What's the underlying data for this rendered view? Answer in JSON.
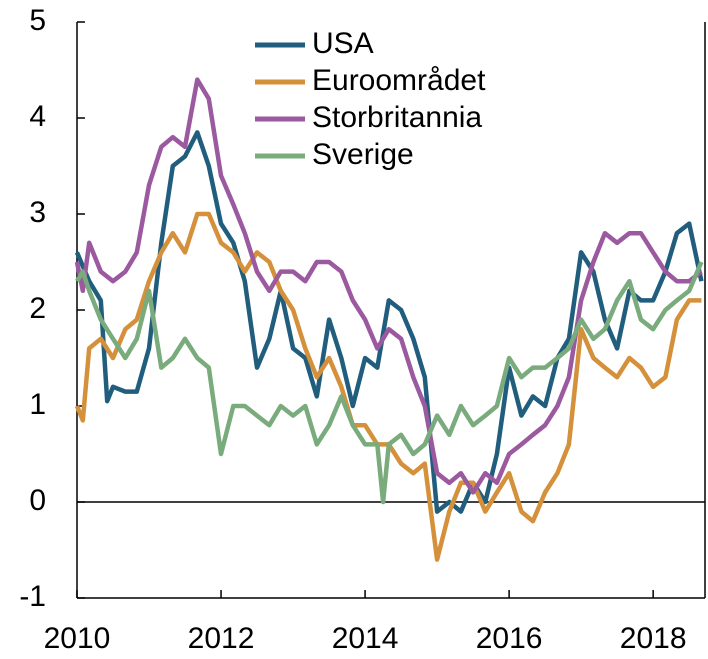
{
  "chart_data": {
    "type": "line",
    "xlim": [
      2010,
      2018.72
    ],
    "xticks": [
      2010,
      2012,
      2014,
      2016,
      2018
    ],
    "ylim": [
      -1,
      5
    ],
    "yticks": [
      -1,
      0,
      1,
      2,
      3,
      4,
      5
    ],
    "legend": "top",
    "series": [
      {
        "name": "USA",
        "color": "#215e7e",
        "x": [
          2010,
          2010.17,
          2010.33,
          2010.42,
          2010.5,
          2010.67,
          2010.83,
          2011,
          2011.17,
          2011.33,
          2011.5,
          2011.67,
          2011.83,
          2012,
          2012.17,
          2012.33,
          2012.5,
          2012.67,
          2012.83,
          2013,
          2013.17,
          2013.33,
          2013.5,
          2013.67,
          2013.83,
          2014,
          2014.17,
          2014.33,
          2014.5,
          2014.67,
          2014.83,
          2015,
          2015.17,
          2015.33,
          2015.5,
          2015.67,
          2015.83,
          2016,
          2016.17,
          2016.33,
          2016.5,
          2016.67,
          2016.83,
          2017,
          2017.17,
          2017.33,
          2017.5,
          2017.67,
          2017.83,
          2018,
          2018.17,
          2018.33,
          2018.5,
          2018.67
        ],
        "values": [
          2.6,
          2.3,
          2.1,
          1.05,
          1.2,
          1.15,
          1.15,
          1.6,
          2.7,
          3.5,
          3.6,
          3.85,
          3.5,
          2.9,
          2.7,
          2.3,
          1.4,
          1.7,
          2.2,
          1.6,
          1.5,
          1.1,
          1.9,
          1.5,
          1.0,
          1.5,
          1.4,
          2.1,
          2.0,
          1.7,
          1.3,
          -0.1,
          0.0,
          -0.1,
          0.2,
          0.0,
          0.5,
          1.4,
          0.9,
          1.1,
          1.0,
          1.5,
          1.7,
          2.6,
          2.4,
          1.9,
          1.6,
          2.2,
          2.1,
          2.1,
          2.4,
          2.8,
          2.9,
          2.3
        ]
      },
      {
        "name": "Euroområdet",
        "color": "#d4903a",
        "x": [
          2010,
          2010.08,
          2010.17,
          2010.33,
          2010.5,
          2010.67,
          2010.83,
          2011,
          2011.17,
          2011.33,
          2011.5,
          2011.67,
          2011.83,
          2012,
          2012.17,
          2012.33,
          2012.5,
          2012.67,
          2012.83,
          2013,
          2013.17,
          2013.33,
          2013.5,
          2013.67,
          2013.83,
          2014,
          2014.17,
          2014.33,
          2014.5,
          2014.67,
          2014.83,
          2015,
          2015.17,
          2015.33,
          2015.5,
          2015.67,
          2015.83,
          2016,
          2016.17,
          2016.33,
          2016.5,
          2016.67,
          2016.83,
          2017,
          2017.17,
          2017.33,
          2017.5,
          2017.67,
          2017.83,
          2018,
          2018.17,
          2018.33,
          2018.5,
          2018.67
        ],
        "values": [
          1.0,
          0.85,
          1.6,
          1.7,
          1.5,
          1.8,
          1.9,
          2.3,
          2.6,
          2.8,
          2.6,
          3.0,
          3.0,
          2.7,
          2.6,
          2.4,
          2.6,
          2.5,
          2.2,
          2.0,
          1.6,
          1.3,
          1.5,
          1.2,
          0.8,
          0.8,
          0.6,
          0.6,
          0.4,
          0.3,
          0.4,
          -0.6,
          -0.1,
          0.2,
          0.2,
          -0.1,
          0.1,
          0.3,
          -0.1,
          -0.2,
          0.1,
          0.3,
          0.6,
          1.8,
          1.5,
          1.4,
          1.3,
          1.5,
          1.4,
          1.2,
          1.3,
          1.9,
          2.1,
          2.1
        ]
      },
      {
        "name": "Storbritannia",
        "color": "#9b59a0",
        "x": [
          2010,
          2010.08,
          2010.17,
          2010.33,
          2010.5,
          2010.67,
          2010.83,
          2011,
          2011.17,
          2011.33,
          2011.5,
          2011.67,
          2011.83,
          2012,
          2012.17,
          2012.33,
          2012.5,
          2012.67,
          2012.83,
          2013,
          2013.17,
          2013.33,
          2013.5,
          2013.67,
          2013.83,
          2014,
          2014.17,
          2014.33,
          2014.5,
          2014.67,
          2014.83,
          2015,
          2015.17,
          2015.33,
          2015.5,
          2015.67,
          2015.83,
          2016,
          2016.17,
          2016.33,
          2016.5,
          2016.67,
          2016.83,
          2017,
          2017.17,
          2017.33,
          2017.5,
          2017.67,
          2017.83,
          2018,
          2018.17,
          2018.33,
          2018.5,
          2018.67
        ],
        "values": [
          2.5,
          2.2,
          2.7,
          2.4,
          2.3,
          2.4,
          2.6,
          3.3,
          3.7,
          3.8,
          3.7,
          4.4,
          4.2,
          3.4,
          3.1,
          2.8,
          2.4,
          2.2,
          2.4,
          2.4,
          2.3,
          2.5,
          2.5,
          2.4,
          2.1,
          1.9,
          1.6,
          1.8,
          1.7,
          1.3,
          1.0,
          0.3,
          0.2,
          0.3,
          0.1,
          0.3,
          0.2,
          0.5,
          0.6,
          0.7,
          0.8,
          1.0,
          1.3,
          2.1,
          2.5,
          2.8,
          2.7,
          2.8,
          2.8,
          2.6,
          2.4,
          2.3,
          2.3,
          2.4
        ]
      },
      {
        "name": "Sverige",
        "color": "#7aab7c",
        "x": [
          2010,
          2010.08,
          2010.17,
          2010.33,
          2010.5,
          2010.67,
          2010.83,
          2011,
          2011.17,
          2011.33,
          2011.5,
          2011.67,
          2011.83,
          2012,
          2012.17,
          2012.33,
          2012.5,
          2012.67,
          2012.83,
          2013,
          2013.17,
          2013.33,
          2013.5,
          2013.67,
          2013.83,
          2014,
          2014.17,
          2014.25,
          2014.33,
          2014.5,
          2014.67,
          2014.83,
          2015,
          2015.17,
          2015.33,
          2015.5,
          2015.67,
          2015.83,
          2016,
          2016.17,
          2016.33,
          2016.5,
          2016.67,
          2016.83,
          2017,
          2017.17,
          2017.33,
          2017.5,
          2017.67,
          2017.83,
          2018,
          2018.17,
          2018.33,
          2018.5,
          2018.67
        ],
        "values": [
          2.3,
          2.4,
          2.2,
          1.9,
          1.7,
          1.5,
          1.7,
          2.2,
          1.4,
          1.5,
          1.7,
          1.5,
          1.4,
          0.5,
          1.0,
          1.0,
          0.9,
          0.8,
          1.0,
          0.9,
          1.0,
          0.6,
          0.8,
          1.1,
          0.8,
          0.6,
          0.6,
          0.0,
          0.6,
          0.7,
          0.5,
          0.6,
          0.9,
          0.7,
          1.0,
          0.8,
          0.9,
          1.0,
          1.5,
          1.3,
          1.4,
          1.4,
          1.5,
          1.6,
          1.9,
          1.7,
          1.8,
          2.1,
          2.3,
          1.9,
          1.8,
          2.0,
          2.1,
          2.2,
          2.5
        ]
      }
    ]
  }
}
